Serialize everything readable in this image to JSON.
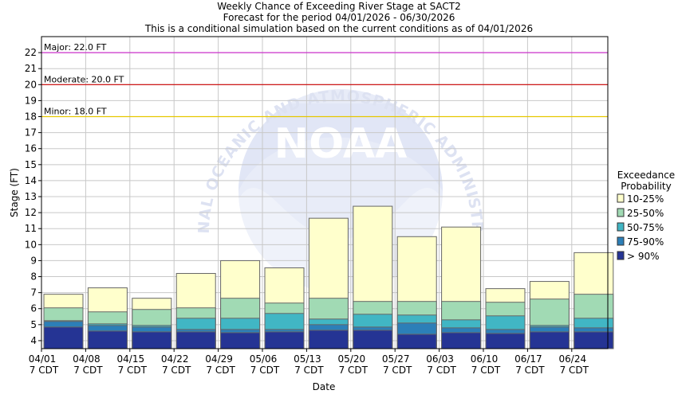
{
  "chart_data": {
    "type": "bar",
    "title_lines": [
      "Weekly Chance of Exceeding River Stage at SACT2",
      "Forecast for the period 04/01/2026 - 06/30/2026",
      "This is a conditional simulation based on the current conditions as of 04/01/2026"
    ],
    "xlabel": "Date",
    "ylabel": "Stage (FT)",
    "ylim": [
      3.5,
      23
    ],
    "yticks": [
      4,
      5,
      6,
      7,
      8,
      9,
      10,
      11,
      12,
      13,
      14,
      15,
      16,
      17,
      18,
      19,
      20,
      21,
      22
    ],
    "grid": true,
    "categories": [
      "04/01",
      "04/08",
      "04/15",
      "04/22",
      "04/29",
      "05/06",
      "05/13",
      "05/20",
      "05/27",
      "06/03",
      "06/10",
      "06/17",
      "06/24"
    ],
    "tick_sublabel": "7 CDT",
    "flood_levels": [
      {
        "label": "Major: 22.0 FT",
        "value": 22.0,
        "color": "#cc33cc"
      },
      {
        "label": "Moderate: 20.0 FT",
        "value": 20.0,
        "color": "#cc0000"
      },
      {
        "label": "Minor: 18.0 FT",
        "value": 18.0,
        "color": "#e6c800"
      }
    ],
    "legend_title": [
      "Exceedance",
      "Probability"
    ],
    "legend_position": "right",
    "series": [
      {
        "name": "> 90%",
        "color": "#253494",
        "values": [
          4.85,
          4.6,
          4.55,
          4.55,
          4.5,
          4.55,
          4.65,
          4.65,
          4.4,
          4.5,
          4.45,
          4.55,
          4.55
        ]
      },
      {
        "name": "75-90%",
        "color": "#2c7fb8",
        "values": [
          5.2,
          4.95,
          4.85,
          4.7,
          4.7,
          4.7,
          5.0,
          4.85,
          5.1,
          4.8,
          4.7,
          4.85,
          4.8
        ]
      },
      {
        "name": "50-75%",
        "color": "#41b6c4",
        "values": [
          5.25,
          5.05,
          4.95,
          5.4,
          5.4,
          5.7,
          5.35,
          5.65,
          5.6,
          5.3,
          5.55,
          4.95,
          5.4
        ]
      },
      {
        "name": "25-50%",
        "color": "#a1dab4",
        "values": [
          6.05,
          5.8,
          5.95,
          6.05,
          6.65,
          6.35,
          6.65,
          6.45,
          6.45,
          6.45,
          6.4,
          6.6,
          6.9
        ]
      },
      {
        "name": "10-25%",
        "color": "#ffffcc",
        "values": [
          6.9,
          7.3,
          6.65,
          8.2,
          9.0,
          8.55,
          11.65,
          12.4,
          10.5,
          11.1,
          7.25,
          7.7,
          9.5
        ]
      }
    ],
    "watermark": {
      "logo": "NOAA",
      "ring_text": "NATIONAL OCEANIC AND ATMOSPHERIC ADMINISTRATION"
    }
  }
}
